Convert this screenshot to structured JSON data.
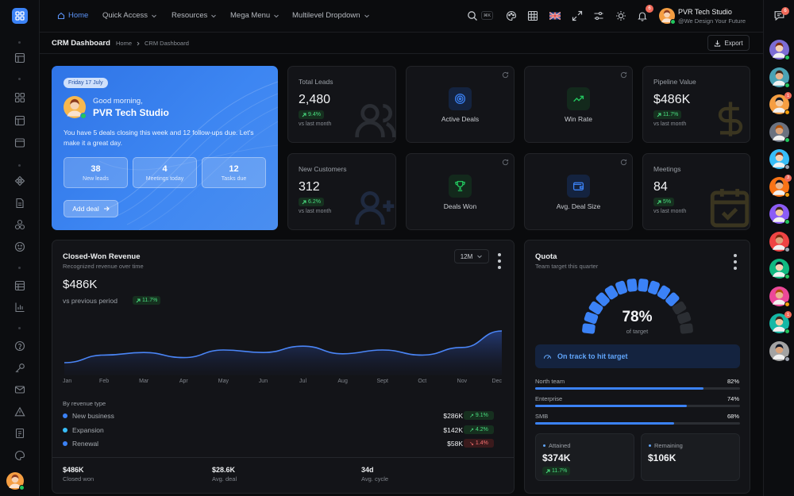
{
  "topbar": {
    "nav": [
      {
        "label": "Home",
        "active": true
      },
      {
        "label": "Quick Access"
      },
      {
        "label": "Resources"
      },
      {
        "label": "Mega Menu"
      },
      {
        "label": "Multilevel Dropdown"
      }
    ],
    "search_shortcut": "⌘K",
    "notification_count": "6",
    "user": {
      "name": "PVR Tech Studio",
      "tagline": "@We Design Your Future"
    },
    "messages_count": "6"
  },
  "subheader": {
    "title": "CRM Dashboard",
    "breadcrumb": [
      "Home",
      "CRM Dashboard"
    ],
    "export_label": "Export"
  },
  "welcome": {
    "date": "Friday 17 July",
    "greeting": "Good morning,",
    "name": "PVR Tech Studio",
    "message": "You have 5 deals closing this week and 12 follow-ups due. Let's make it a great day.",
    "stats": [
      {
        "value": "38",
        "label": "New leads"
      },
      {
        "value": "4",
        "label": "Meetings today"
      },
      {
        "value": "12",
        "label": "Tasks due"
      }
    ],
    "cta": "Add deal"
  },
  "kpis": [
    {
      "label": "Total Leads",
      "value": "2,480",
      "change": "9.4%",
      "sub": "vs last month",
      "bg_icon": "users-icon"
    },
    {
      "label": "Pipeline Value",
      "value": "$486K",
      "change": "11.7%",
      "sub": "vs last month",
      "bg_icon": "dollar-icon"
    },
    {
      "label": "New Customers",
      "value": "312",
      "change": "6.2%",
      "sub": "vs last month",
      "bg_icon": "user-plus-icon"
    },
    {
      "label": "Meetings",
      "value": "84",
      "change": "5%",
      "sub": "vs last month",
      "bg_icon": "calendar-check-icon"
    }
  ],
  "icon_cards": [
    {
      "label": "Active Deals",
      "icon": "target-icon",
      "color": "#3b82f6"
    },
    {
      "label": "Win Rate",
      "icon": "trending-up-icon",
      "color": "#22c55e"
    },
    {
      "label": "Deals Won",
      "icon": "trophy-icon",
      "color": "#22c55e"
    },
    {
      "label": "Avg. Deal Size",
      "icon": "wallet-icon",
      "color": "#3b82f6"
    }
  ],
  "revenue": {
    "title": "Closed-Won Revenue",
    "subtitle": "Recognized revenue over time",
    "range": "12M",
    "value": "$486K",
    "compare": "vs previous period",
    "change": "11.7%",
    "breakdown_title": "By revenue type",
    "breakdown": [
      {
        "name": "New business",
        "value": "$286K",
        "change": "9.1%",
        "dir": "up",
        "color": "#3b82f6"
      },
      {
        "name": "Expansion",
        "value": "$142K",
        "change": "4.2%",
        "dir": "up",
        "color": "#38bdf8"
      },
      {
        "name": "Renewal",
        "value": "$58K",
        "change": "1.4%",
        "dir": "down",
        "color": "#3b82f6"
      }
    ],
    "footer": [
      {
        "value": "$486K",
        "label": "Closed won"
      },
      {
        "value": "$28.6K",
        "label": "Avg. deal"
      },
      {
        "value": "34d",
        "label": "Avg. cycle"
      }
    ]
  },
  "chart_data": {
    "type": "area",
    "categories": [
      "Jan",
      "Feb",
      "Mar",
      "Apr",
      "May",
      "Jun",
      "Jul",
      "Aug",
      "Sept",
      "Oct",
      "Nov",
      "Dec"
    ],
    "series": [
      {
        "values": [
          20,
          32,
          36,
          28,
          40,
          36,
          46,
          34,
          40,
          32,
          44,
          70
        ]
      }
    ],
    "ylim": [
      0,
      100
    ],
    "grid": false
  },
  "quota": {
    "title": "Quota",
    "subtitle": "Team target this quarter",
    "percent": 78,
    "percent_label": "78%",
    "caption": "of target",
    "status": "On track to hit target",
    "teams": [
      {
        "name": "North team",
        "pct_label": "82%",
        "pct": 82
      },
      {
        "name": "Enterprise",
        "pct_label": "74%",
        "pct": 74
      },
      {
        "name": "SMB",
        "pct_label": "68%",
        "pct": 68
      }
    ],
    "attained": {
      "label": "Attained",
      "value": "$374K",
      "change": "11.7%"
    },
    "remaining": {
      "label": "Remaining",
      "value": "$106K"
    }
  }
}
